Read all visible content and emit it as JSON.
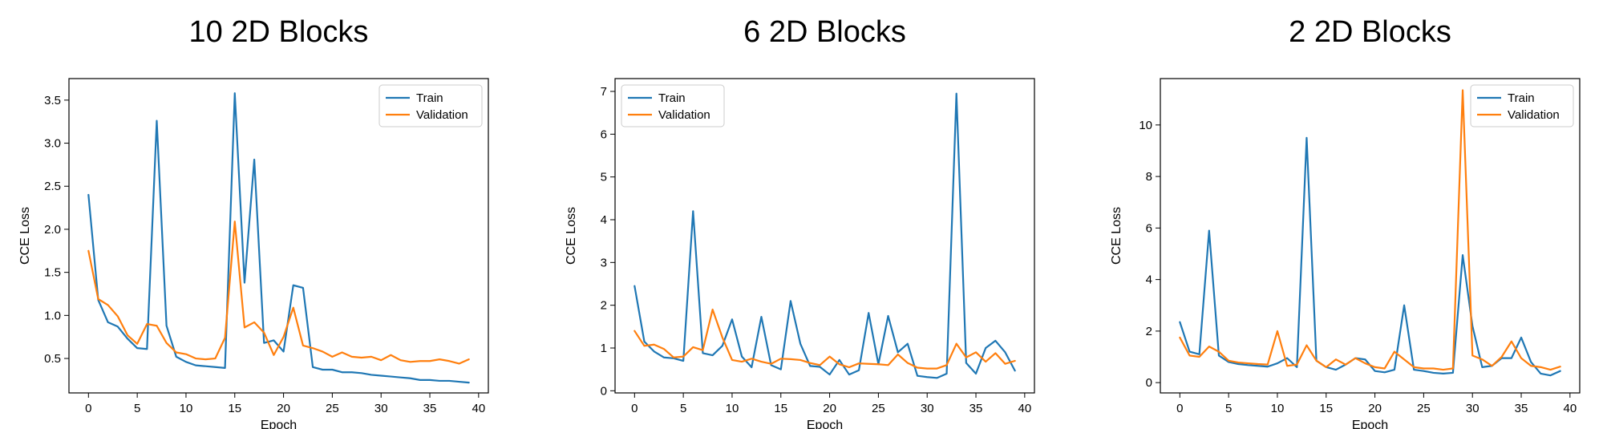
{
  "colors": {
    "train": "#1f77b4",
    "validation": "#ff7f0e"
  },
  "chart_data": [
    {
      "type": "line",
      "title": "10 2D Blocks",
      "xlabel": "Epoch",
      "ylabel": "CCE Loss",
      "xlim": [
        -2,
        41
      ],
      "ylim": [
        0.1,
        3.75
      ],
      "xticks": [
        0,
        5,
        10,
        15,
        20,
        25,
        30,
        35,
        40
      ],
      "yticks": [
        0.5,
        1.0,
        1.5,
        2.0,
        2.5,
        3.0,
        3.5
      ],
      "ytick_labels": [
        "0.5",
        "1.0",
        "1.5",
        "2.0",
        "2.5",
        "3.0",
        "3.5"
      ],
      "legend": "top-right",
      "grid": false,
      "series": [
        {
          "name": "Train",
          "values": [
            2.4,
            1.18,
            0.92,
            0.87,
            0.73,
            0.62,
            0.61,
            3.26,
            0.88,
            0.52,
            0.46,
            0.42,
            0.41,
            0.4,
            0.39,
            3.58,
            1.38,
            2.81,
            0.68,
            0.71,
            0.58,
            1.35,
            1.32,
            0.4,
            0.37,
            0.37,
            0.34,
            0.34,
            0.33,
            0.31,
            0.3,
            0.29,
            0.28,
            0.27,
            0.25,
            0.25,
            0.24,
            0.24,
            0.23,
            0.22
          ]
        },
        {
          "name": "Validation",
          "values": [
            1.75,
            1.19,
            1.12,
            0.99,
            0.77,
            0.67,
            0.9,
            0.88,
            0.68,
            0.57,
            0.55,
            0.5,
            0.49,
            0.5,
            0.74,
            2.09,
            0.86,
            0.92,
            0.8,
            0.54,
            0.75,
            1.09,
            0.65,
            0.62,
            0.58,
            0.52,
            0.57,
            0.52,
            0.51,
            0.52,
            0.48,
            0.54,
            0.48,
            0.46,
            0.47,
            0.47,
            0.49,
            0.47,
            0.44,
            0.49
          ]
        }
      ]
    },
    {
      "type": "line",
      "title": "6 2D Blocks",
      "xlabel": "Epoch",
      "ylabel": "CCE Loss",
      "xlim": [
        -2,
        41
      ],
      "ylim": [
        -0.05,
        7.3
      ],
      "xticks": [
        0,
        5,
        10,
        15,
        20,
        25,
        30,
        35,
        40
      ],
      "yticks": [
        0,
        1,
        2,
        3,
        4,
        5,
        6,
        7
      ],
      "ytick_labels": [
        "0",
        "1",
        "2",
        "3",
        "4",
        "5",
        "6",
        "7"
      ],
      "legend": "top-left",
      "grid": false,
      "series": [
        {
          "name": "Train",
          "values": [
            2.45,
            1.15,
            0.92,
            0.78,
            0.76,
            0.7,
            4.2,
            0.88,
            0.83,
            1.05,
            1.67,
            0.8,
            0.55,
            1.73,
            0.6,
            0.5,
            2.1,
            1.1,
            0.58,
            0.56,
            0.38,
            0.72,
            0.38,
            0.48,
            1.82,
            0.62,
            1.75,
            0.9,
            1.1,
            0.35,
            0.32,
            0.3,
            0.4,
            6.95,
            0.65,
            0.4,
            1.0,
            1.17,
            0.9,
            0.47
          ]
        },
        {
          "name": "Validation",
          "values": [
            1.4,
            1.05,
            1.08,
            0.98,
            0.78,
            0.8,
            1.02,
            0.95,
            1.9,
            1.25,
            0.72,
            0.68,
            0.75,
            0.68,
            0.63,
            0.75,
            0.74,
            0.72,
            0.65,
            0.6,
            0.8,
            0.62,
            0.55,
            0.64,
            0.63,
            0.62,
            0.6,
            0.85,
            0.65,
            0.54,
            0.52,
            0.52,
            0.6,
            1.1,
            0.78,
            0.9,
            0.68,
            0.88,
            0.63,
            0.7
          ]
        }
      ]
    },
    {
      "type": "line",
      "title": "2 2D Blocks",
      "xlabel": "Epoch",
      "ylabel": "CCE Loss",
      "xlim": [
        -2,
        41
      ],
      "ylim": [
        -0.4,
        11.8
      ],
      "xticks": [
        0,
        5,
        10,
        15,
        20,
        25,
        30,
        35,
        40
      ],
      "yticks": [
        0,
        2,
        4,
        6,
        8,
        10
      ],
      "ytick_labels": [
        "0",
        "2",
        "4",
        "6",
        "8",
        "10"
      ],
      "legend": "top-right",
      "grid": false,
      "series": [
        {
          "name": "Train",
          "values": [
            2.35,
            1.2,
            1.1,
            5.9,
            1.05,
            0.8,
            0.72,
            0.68,
            0.65,
            0.62,
            0.75,
            0.95,
            0.6,
            9.5,
            0.85,
            0.6,
            0.5,
            0.7,
            0.95,
            0.9,
            0.45,
            0.4,
            0.5,
            3.0,
            0.5,
            0.45,
            0.38,
            0.35,
            0.38,
            4.95,
            2.2,
            0.6,
            0.65,
            0.95,
            0.95,
            1.75,
            0.8,
            0.35,
            0.28,
            0.45
          ]
        },
        {
          "name": "Validation",
          "values": [
            1.75,
            1.05,
            1.0,
            1.4,
            1.2,
            0.85,
            0.78,
            0.75,
            0.72,
            0.7,
            2.0,
            0.65,
            0.7,
            1.45,
            0.85,
            0.6,
            0.9,
            0.7,
            0.95,
            0.75,
            0.6,
            0.55,
            1.2,
            0.9,
            0.6,
            0.55,
            0.55,
            0.5,
            0.55,
            11.35,
            1.05,
            0.9,
            0.65,
            1.0,
            1.6,
            0.95,
            0.65,
            0.6,
            0.5,
            0.62
          ]
        }
      ]
    }
  ]
}
